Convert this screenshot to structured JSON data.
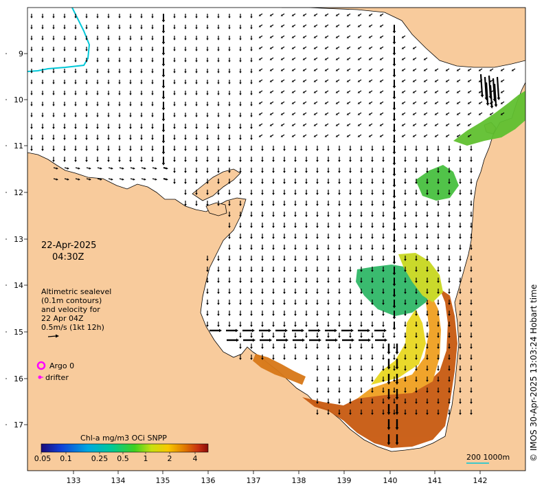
{
  "map": {
    "date": "22-Apr-2025",
    "time": "04:30Z",
    "legend_lines": [
      "Altimetric sealevel",
      "(0.1m contours)",
      "and velocity for",
      "22 Apr 04Z",
      "0.5m/s (1kt 12h)"
    ],
    "argo_label": "Argo 0",
    "drifter_label": "drifter",
    "credit": "© IMOS 30-Apr-2025 13:03:24 Hobart time",
    "colorbar": {
      "title": "Chl-a mg/m3 OCi SNPP",
      "tick_labels": [
        "0.05",
        "0.1",
        "0.25",
        "0.5",
        "1",
        "2",
        "4"
      ]
    },
    "scale_label": "200  1000m",
    "lon_ticks": [
      "133",
      "134",
      "135",
      "136",
      "137",
      "138",
      "139",
      "140",
      "141",
      "142"
    ],
    "lat_ticks": [
      "9",
      "10",
      "11",
      "12",
      "13",
      "14",
      "15",
      "16",
      "17"
    ],
    "colors": {
      "land": "#f8cb9c",
      "ocean": "#ffffff",
      "coastline": "#000000",
      "argo": "#ff00ff",
      "drifter": "#ff00ff",
      "contour_cyan": "#00c8d8"
    }
  }
}
